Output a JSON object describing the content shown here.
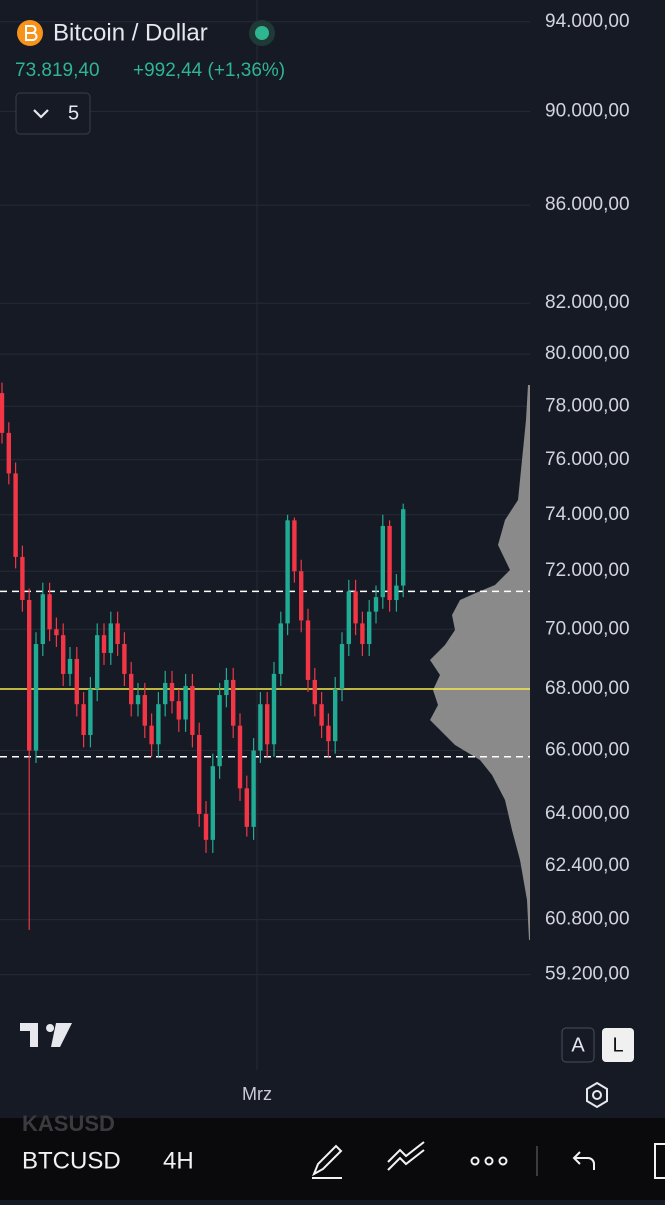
{
  "header": {
    "title": "Bitcoin / Dollar",
    "price": "73.819,40",
    "change": "+992,44 (+1,36%)",
    "layout_count": "5"
  },
  "chart_data": {
    "type": "candlestick",
    "log_scale": true,
    "grid": true,
    "up_color": "#22ab94",
    "down_color": "#f23645",
    "ylim": [
      55300,
      95000
    ],
    "yticks": [
      {
        "value": 94000,
        "label": "94.000,00"
      },
      {
        "value": 90000,
        "label": "90.000,00"
      },
      {
        "value": 86000,
        "label": "86.000,00"
      },
      {
        "value": 82000,
        "label": "82.000,00"
      },
      {
        "value": 80000,
        "label": "80.000,00"
      },
      {
        "value": 78000,
        "label": "78.000,00"
      },
      {
        "value": 76000,
        "label": "76.000,00"
      },
      {
        "value": 74000,
        "label": "74.000,00"
      },
      {
        "value": 72000,
        "label": "72.000,00"
      },
      {
        "value": 70000,
        "label": "70.000,00"
      },
      {
        "value": 68000,
        "label": "68.000,00"
      },
      {
        "value": 66000,
        "label": "66.000,00"
      },
      {
        "value": 64000,
        "label": "64.000,00"
      },
      {
        "value": 62400,
        "label": "62.400,00"
      },
      {
        "value": 60800,
        "label": "60.800,00"
      },
      {
        "value": 59200,
        "label": "59.200,00"
      }
    ],
    "x_label": "Mrz",
    "reference_lines": [
      {
        "value": 71300,
        "color": "#ffffff",
        "dashed": true
      },
      {
        "value": 68000,
        "color": "#f5e94a",
        "dashed": false
      },
      {
        "value": 65800,
        "color": "#ffffff",
        "dashed": true
      }
    ],
    "open": [
      78500,
      77000,
      75500,
      72500,
      71000,
      66000,
      69500,
      71200,
      70000,
      69800,
      68500,
      69000,
      67500,
      66500,
      68000,
      69800,
      69200,
      70200,
      69500,
      68500,
      67500,
      67800,
      66800,
      66200,
      67500,
      68200,
      67600,
      67000,
      68100,
      66500,
      64000,
      63200,
      65500,
      67800,
      68300,
      66800,
      64800,
      63600,
      66000,
      67500,
      66200,
      68500,
      70200,
      73800,
      72000,
      70300,
      68300,
      67500,
      66800,
      66300,
      68000,
      69500,
      71300,
      70200,
      69500,
      70600,
      71100,
      73600,
      71000,
      71500
    ],
    "high": [
      78900,
      77400,
      75900,
      72900,
      71400,
      69900,
      71600,
      71600,
      70400,
      70200,
      69400,
      69400,
      67900,
      68400,
      70200,
      70200,
      70600,
      70600,
      69900,
      68900,
      68200,
      68200,
      67200,
      67900,
      68600,
      68600,
      68000,
      68500,
      68500,
      66900,
      64400,
      65900,
      68200,
      68700,
      68700,
      67200,
      65200,
      66400,
      67900,
      67900,
      68900,
      70600,
      74000,
      73900,
      72400,
      70700,
      68700,
      67900,
      67200,
      68400,
      69900,
      71700,
      71700,
      70600,
      71000,
      71500,
      74000,
      73800,
      71900,
      74400
    ],
    "low": [
      76600,
      75100,
      72100,
      70600,
      60500,
      65600,
      69100,
      69600,
      69400,
      68100,
      68100,
      67100,
      66100,
      66100,
      67600,
      68800,
      68800,
      69100,
      68100,
      67100,
      67100,
      66400,
      65800,
      65800,
      67100,
      67200,
      66600,
      66600,
      66100,
      63600,
      62800,
      62800,
      65100,
      67400,
      66400,
      64400,
      63300,
      63200,
      65600,
      65800,
      65800,
      68100,
      69800,
      71600,
      69900,
      67900,
      67100,
      66400,
      65800,
      65900,
      67600,
      69100,
      69800,
      69100,
      69100,
      70200,
      70700,
      70600,
      70600,
      71100
    ],
    "close": [
      77000,
      75500,
      72500,
      71000,
      66000,
      69500,
      71200,
      70000,
      69800,
      68500,
      69000,
      67500,
      66500,
      68000,
      69800,
      69200,
      70200,
      69500,
      68500,
      67500,
      67800,
      66800,
      66200,
      67500,
      68200,
      67600,
      67000,
      68100,
      66500,
      64000,
      63200,
      65500,
      67800,
      68300,
      66800,
      64800,
      63600,
      66000,
      67500,
      66200,
      68500,
      70200,
      73800,
      72000,
      70300,
      68300,
      67500,
      66800,
      66300,
      68000,
      69500,
      71300,
      70200,
      69500,
      70600,
      71100,
      73600,
      71000,
      71500,
      74200
    ]
  },
  "scale_buttons": {
    "auto": "A",
    "log": "L"
  },
  "bottom_bar": {
    "previous_symbol": "KASUSD",
    "symbol": "BTCUSD",
    "interval": "4H"
  }
}
